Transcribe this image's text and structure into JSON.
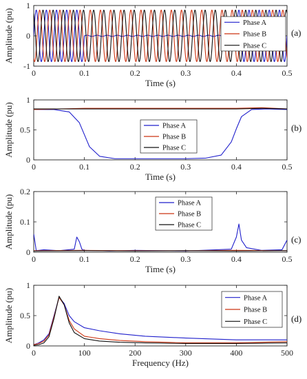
{
  "chart_data": [
    {
      "id": "a",
      "type": "line",
      "tag": "(a)",
      "xlabel": "Time (s)",
      "ylabel": "Amplitude (pu)",
      "xlim": [
        0,
        0.5
      ],
      "ylim": [
        -1,
        1
      ],
      "xticks": [
        0,
        0.1,
        0.2,
        0.3,
        0.4,
        0.5
      ],
      "xticklabels": [
        "0",
        "0.1",
        "0.2",
        "0.3",
        "0.4",
        "0.5"
      ],
      "yticks": [
        -1,
        0,
        1
      ],
      "yticklabels": [
        "-1",
        "0",
        "1"
      ],
      "legend": "top-right",
      "signal": {
        "kind": "three-phase-sine",
        "frequency_hz": 50,
        "amplitude": 0.85,
        "phase_a_fault_start_s": 0.1,
        "phase_a_fault_end_s": 0.4,
        "phase_a_fault_amplitude": 0.02
      },
      "series": [
        {
          "name": "Phase A",
          "color": "#1f1fcc"
        },
        {
          "name": "Phase B",
          "color": "#cc3311"
        },
        {
          "name": "Phase C",
          "color": "#111111"
        }
      ]
    },
    {
      "id": "b",
      "type": "line",
      "tag": "(b)",
      "xlabel": "Time (s)",
      "ylabel": "Amplitude (pu)",
      "xlim": [
        0,
        0.5
      ],
      "ylim": [
        0,
        1
      ],
      "xticks": [
        0,
        0.1,
        0.2,
        0.3,
        0.4,
        0.5
      ],
      "xticklabels": [
        "0",
        "0.1",
        "0.2",
        "0.3",
        "0.4",
        "0.5"
      ],
      "yticks": [
        0,
        0.5,
        1
      ],
      "yticklabels": [
        "0",
        "0.5",
        "1"
      ],
      "legend": "center",
      "series": [
        {
          "name": "Phase A",
          "color": "#1f1fcc",
          "x": [
            0,
            0.04,
            0.07,
            0.09,
            0.1,
            0.11,
            0.13,
            0.16,
            0.2,
            0.3,
            0.34,
            0.37,
            0.39,
            0.4,
            0.41,
            0.43,
            0.46,
            0.5
          ],
          "y": [
            0.84,
            0.84,
            0.8,
            0.62,
            0.42,
            0.22,
            0.06,
            0.02,
            0.02,
            0.02,
            0.03,
            0.08,
            0.3,
            0.52,
            0.72,
            0.84,
            0.85,
            0.84
          ]
        },
        {
          "name": "Phase B",
          "color": "#cc3311",
          "x": [
            0,
            0.05,
            0.1,
            0.2,
            0.3,
            0.4,
            0.45,
            0.5
          ],
          "y": [
            0.84,
            0.85,
            0.86,
            0.86,
            0.86,
            0.86,
            0.87,
            0.85
          ]
        },
        {
          "name": "Phase C",
          "color": "#111111",
          "x": [
            0,
            0.05,
            0.1,
            0.2,
            0.3,
            0.4,
            0.45,
            0.5
          ],
          "y": [
            0.85,
            0.85,
            0.85,
            0.85,
            0.85,
            0.85,
            0.86,
            0.85
          ]
        }
      ]
    },
    {
      "id": "c",
      "type": "line",
      "tag": "(c)",
      "xlabel": "Time (s)",
      "ylabel": "Amplitude (pu)",
      "xlim": [
        0,
        0.5
      ],
      "ylim": [
        0,
        0.2
      ],
      "xticks": [
        0,
        0.1,
        0.2,
        0.3,
        0.4,
        0.5
      ],
      "xticklabels": [
        "0",
        "0.1",
        "0.2",
        "0.3",
        "0.4",
        "0.5"
      ],
      "yticks": [
        0,
        0.1,
        0.2
      ],
      "yticklabels": [
        "0",
        "0.1",
        "0.2"
      ],
      "legend": "center-right",
      "series": [
        {
          "name": "Phase A",
          "color": "#1f1fcc",
          "x": [
            0,
            0.005,
            0.02,
            0.05,
            0.08,
            0.085,
            0.09,
            0.095,
            0.1,
            0.15,
            0.2,
            0.3,
            0.39,
            0.4,
            0.405,
            0.41,
            0.42,
            0.45,
            0.49,
            0.5
          ],
          "y": [
            0.06,
            0.005,
            0.008,
            0.005,
            0.01,
            0.05,
            0.035,
            0.01,
            0.006,
            0.004,
            0.006,
            0.004,
            0.01,
            0.05,
            0.093,
            0.04,
            0.015,
            0.006,
            0.008,
            0.04
          ]
        },
        {
          "name": "Phase B",
          "color": "#cc3311",
          "x": [
            0,
            0.1,
            0.2,
            0.3,
            0.4,
            0.5
          ],
          "y": [
            0.005,
            0.006,
            0.005,
            0.005,
            0.006,
            0.005
          ]
        },
        {
          "name": "Phase C",
          "color": "#111111",
          "x": [
            0,
            0.1,
            0.2,
            0.3,
            0.4,
            0.5
          ],
          "y": [
            0.004,
            0.005,
            0.004,
            0.005,
            0.004,
            0.005
          ]
        }
      ]
    },
    {
      "id": "d",
      "type": "line",
      "tag": "(d)",
      "xlabel": "Frequency (Hz)",
      "ylabel": "Amplitude (pu)",
      "xlim": [
        0,
        500
      ],
      "ylim": [
        0,
        1
      ],
      "xticks": [
        0,
        100,
        200,
        300,
        400,
        500
      ],
      "xticklabels": [
        "0",
        "100",
        "200",
        "300",
        "400",
        "500"
      ],
      "yticks": [
        0,
        0.5,
        1
      ],
      "yticklabels": [
        "0",
        "0.5",
        "1"
      ],
      "legend": "top-right",
      "series": [
        {
          "name": "Phase A",
          "color": "#1f1fcc",
          "x": [
            0,
            10,
            20,
            30,
            40,
            50,
            60,
            70,
            80,
            100,
            130,
            170,
            220,
            300,
            400,
            500
          ],
          "y": [
            0.02,
            0.05,
            0.1,
            0.2,
            0.5,
            0.8,
            0.7,
            0.5,
            0.4,
            0.3,
            0.25,
            0.2,
            0.16,
            0.13,
            0.1,
            0.1
          ]
        },
        {
          "name": "Phase B",
          "color": "#cc3311",
          "x": [
            0,
            10,
            20,
            30,
            40,
            50,
            60,
            70,
            80,
            100,
            130,
            170,
            220,
            300,
            400,
            500
          ],
          "y": [
            0.02,
            0.04,
            0.08,
            0.18,
            0.48,
            0.8,
            0.68,
            0.42,
            0.28,
            0.16,
            0.12,
            0.09,
            0.07,
            0.05,
            0.05,
            0.07
          ]
        },
        {
          "name": "Phase C",
          "color": "#111111",
          "x": [
            0,
            10,
            20,
            30,
            40,
            50,
            60,
            70,
            80,
            100,
            130,
            170,
            220,
            300,
            400,
            500
          ],
          "y": [
            0.01,
            0.02,
            0.05,
            0.15,
            0.45,
            0.82,
            0.68,
            0.38,
            0.22,
            0.12,
            0.08,
            0.06,
            0.05,
            0.04,
            0.04,
            0.05
          ]
        }
      ]
    }
  ]
}
